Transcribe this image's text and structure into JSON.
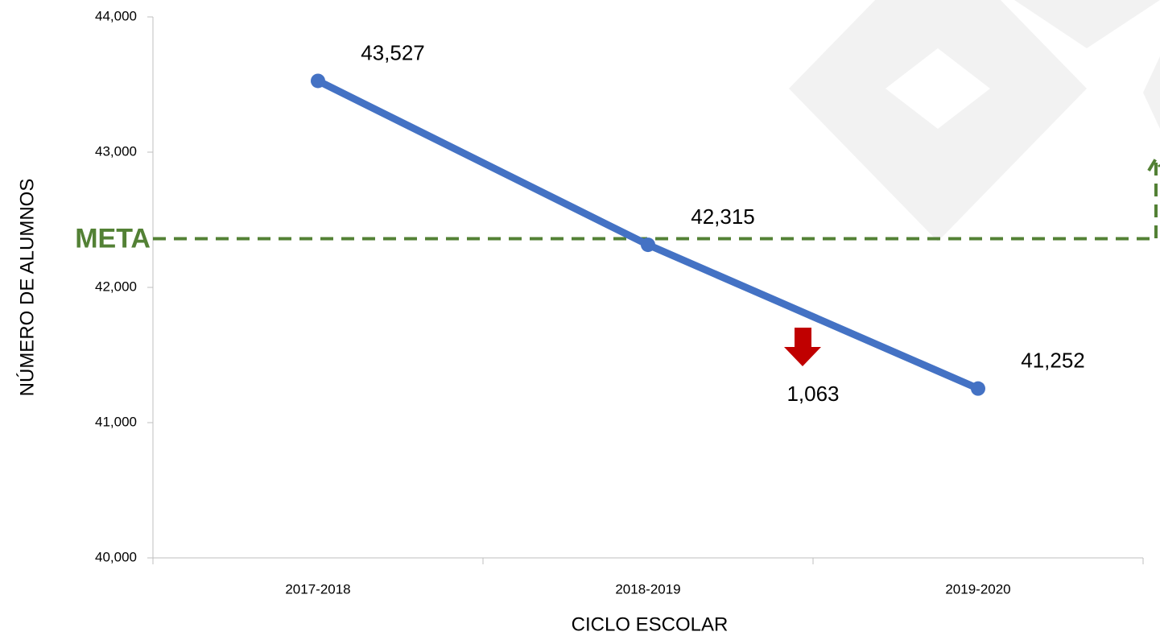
{
  "chart_data": {
    "type": "line",
    "xlabel": "CICLO ESCOLAR",
    "ylabel": "NÚMERO DE ALUMNOS",
    "categories": [
      "2017-2018",
      "2018-2019",
      "2019-2020"
    ],
    "series": [
      {
        "color": "#4472c4",
        "values": [
          43527,
          42315,
          41252
        ],
        "value_labels": [
          "43,527",
          "42,315",
          "41,252"
        ]
      }
    ],
    "ylim": [
      40000,
      44000
    ],
    "yticks": [
      {
        "value": 40000,
        "label": "40,000"
      },
      {
        "value": 41000,
        "label": "41,000"
      },
      {
        "value": 42000,
        "label": "42,000"
      },
      {
        "value": 43000,
        "label": "43,000"
      },
      {
        "value": 44000,
        "label": "44,000"
      }
    ],
    "target": {
      "label": "META",
      "value": 42360,
      "color": "#538135"
    },
    "annotations": [
      {
        "text": "1,063",
        "color": "#c00000"
      }
    ]
  }
}
